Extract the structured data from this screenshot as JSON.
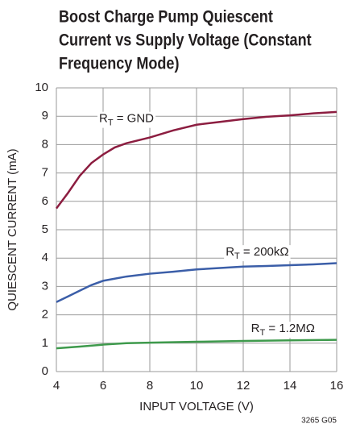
{
  "chart_data": {
    "type": "line",
    "title": [
      "Boost Charge Pump Quiescent",
      "Current vs Supply Voltage (Constant",
      "Frequency Mode)"
    ],
    "xlabel": "INPUT VOLTAGE (V)",
    "ylabel": "QUIESCENT CURRENT (mA)",
    "note": "3265 G05",
    "xlim": [
      4,
      16
    ],
    "ylim": [
      0,
      10
    ],
    "xticks": [
      4,
      6,
      8,
      10,
      12,
      14,
      16
    ],
    "yticks": [
      0,
      1,
      2,
      3,
      4,
      5,
      6,
      7,
      8,
      9,
      10
    ],
    "grid": true,
    "series": [
      {
        "name": "RT = GND",
        "color": "#8c1d40",
        "x": [
          4,
          4.5,
          5,
          5.5,
          6,
          6.5,
          7,
          8,
          9,
          10,
          11,
          12,
          13,
          14,
          15,
          16
        ],
        "values": [
          5.75,
          6.3,
          6.9,
          7.35,
          7.65,
          7.9,
          8.05,
          8.25,
          8.5,
          8.7,
          8.8,
          8.9,
          8.98,
          9.03,
          9.1,
          9.15
        ]
      },
      {
        "name": "RT = 200kΩ",
        "color": "#3b5ea8",
        "x": [
          4,
          4.5,
          5,
          5.5,
          6,
          7,
          8,
          9,
          10,
          11,
          12,
          13,
          14,
          15,
          16
        ],
        "values": [
          2.45,
          2.65,
          2.85,
          3.05,
          3.2,
          3.35,
          3.45,
          3.52,
          3.6,
          3.65,
          3.7,
          3.72,
          3.75,
          3.78,
          3.82
        ]
      },
      {
        "name": "RT = 1.2MΩ",
        "color": "#3e9a4c",
        "x": [
          4,
          5,
          6,
          7,
          8,
          10,
          12,
          14,
          16
        ],
        "values": [
          0.82,
          0.88,
          0.95,
          1.0,
          1.02,
          1.05,
          1.08,
          1.1,
          1.12
        ]
      }
    ]
  }
}
